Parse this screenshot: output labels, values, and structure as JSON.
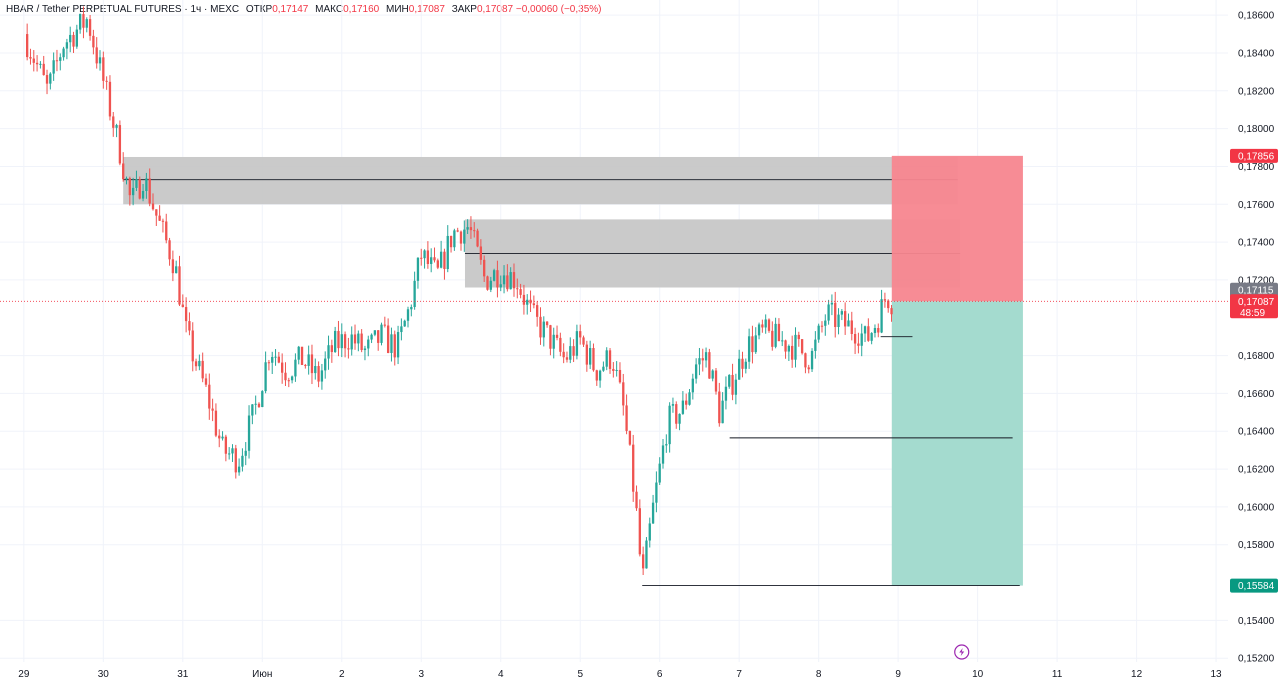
{
  "header": {
    "symbol": "HBAR / Tether PERPETUAL FUTURES · 1ч · MEXC",
    "open_label": "ОТКР",
    "open": "0,17147",
    "high_label": "МАКС",
    "high": "0,17160",
    "low_label": "МИН",
    "low": "0,17087",
    "close_label": "ЗАКР",
    "close": "0,17087",
    "change": "−0,00060 (−0,35%)"
  },
  "colors": {
    "up": "#26a69a",
    "down": "#ef5350",
    "zone": "#c4c4c4",
    "stop": "#f7868f",
    "target": "#9fd9cc",
    "tag_red": "#f23645",
    "tag_green": "#089981",
    "tag_gray": "#787b86"
  },
  "chart_data": {
    "type": "candlestick",
    "y_axis": {
      "range": [
        0.1518,
        0.1868
      ],
      "ticks": [
        0.186,
        0.184,
        0.182,
        0.18,
        0.178,
        0.176,
        0.174,
        0.172,
        0.168,
        0.166,
        0.164,
        0.162,
        0.16,
        0.158,
        0.154,
        0.152
      ],
      "tick_labels": [
        "0,18600",
        "0,18400",
        "0,18200",
        "0,18000",
        "0,17800",
        "0,17600",
        "0,17400",
        "0,17200",
        "0,16800",
        "0,16600",
        "0,16400",
        "0,16200",
        "0,16000",
        "0,15800",
        "0,15400",
        "0,15200"
      ]
    },
    "x_axis": {
      "labels": [
        "29",
        "30",
        "31",
        "Июн",
        "2",
        "3",
        "4",
        "5",
        "6",
        "7",
        "8",
        "9",
        "10",
        "11",
        "12",
        "13"
      ],
      "range_days": [
        -0.3,
        15.15
      ]
    },
    "candle_path": [
      [
        0,
        0.185
      ],
      [
        0.3,
        0.182
      ],
      [
        0.5,
        0.1845
      ],
      [
        0.8,
        0.1858
      ],
      [
        1.0,
        0.1825
      ],
      [
        1.2,
        0.179
      ],
      [
        1.35,
        0.176
      ],
      [
        1.5,
        0.1775
      ],
      [
        1.7,
        0.175
      ],
      [
        1.9,
        0.1728
      ],
      [
        2.05,
        0.169
      ],
      [
        2.3,
        0.166
      ],
      [
        2.5,
        0.163
      ],
      [
        2.7,
        0.1625
      ],
      [
        2.9,
        0.165
      ],
      [
        3.1,
        0.1685
      ],
      [
        3.3,
        0.1672
      ],
      [
        3.5,
        0.1678
      ],
      [
        3.7,
        0.1668
      ],
      [
        3.9,
        0.1685
      ],
      [
        4.1,
        0.169
      ],
      [
        4.3,
        0.1682
      ],
      [
        4.5,
        0.169
      ],
      [
        4.7,
        0.1684
      ],
      [
        4.85,
        0.1705
      ],
      [
        5.0,
        0.1733
      ],
      [
        5.2,
        0.1722
      ],
      [
        5.4,
        0.1745
      ],
      [
        5.6,
        0.1748
      ],
      [
        5.8,
        0.172
      ],
      [
        6.0,
        0.1725
      ],
      [
        6.2,
        0.172
      ],
      [
        6.4,
        0.17
      ],
      [
        6.6,
        0.169
      ],
      [
        6.8,
        0.1678
      ],
      [
        7.0,
        0.1688
      ],
      [
        7.2,
        0.1672
      ],
      [
        7.4,
        0.168
      ],
      [
        7.55,
        0.165
      ],
      [
        7.7,
        0.16
      ],
      [
        7.78,
        0.1559
      ],
      [
        7.9,
        0.1595
      ],
      [
        8.1,
        0.1645
      ],
      [
        8.3,
        0.1652
      ],
      [
        8.45,
        0.1675
      ],
      [
        8.6,
        0.168
      ],
      [
        8.75,
        0.165
      ],
      [
        8.9,
        0.1665
      ],
      [
        9.1,
        0.1685
      ],
      [
        9.3,
        0.1692
      ],
      [
        9.5,
        0.1688
      ],
      [
        9.7,
        0.1685
      ],
      [
        9.9,
        0.1678
      ],
      [
        10.1,
        0.1702
      ],
      [
        10.3,
        0.1697
      ],
      [
        10.5,
        0.1693
      ],
      [
        10.6,
        0.1688
      ],
      [
        10.75,
        0.17
      ],
      [
        10.85,
        0.1712
      ],
      [
        10.92,
        0.1709
      ]
    ],
    "zones": [
      {
        "d1": 1.25,
        "d2": 11.75,
        "top": 0.1785,
        "bottom": 0.176,
        "mid": 0.1773
      },
      {
        "d1": 5.55,
        "d2": 11.78,
        "top": 0.1752,
        "bottom": 0.1716,
        "mid": 0.1734
      }
    ],
    "levels": [
      {
        "d1": 7.78,
        "d2": 12.53,
        "y": 0.15584
      },
      {
        "d1": 8.88,
        "d2": 12.44,
        "y": 0.16365
      },
      {
        "d1": 10.78,
        "d2": 11.18,
        "y": 0.169
      }
    ],
    "position": {
      "d1": 10.92,
      "d2": 12.57,
      "entry": 0.17087,
      "stop": 0.17856,
      "target": 0.15584
    },
    "tags": {
      "stop": "0,17856",
      "high": "0,17115",
      "last": "0,17087",
      "countdown": "48:59",
      "target": "0,15584"
    },
    "current_price": 0.17087
  }
}
